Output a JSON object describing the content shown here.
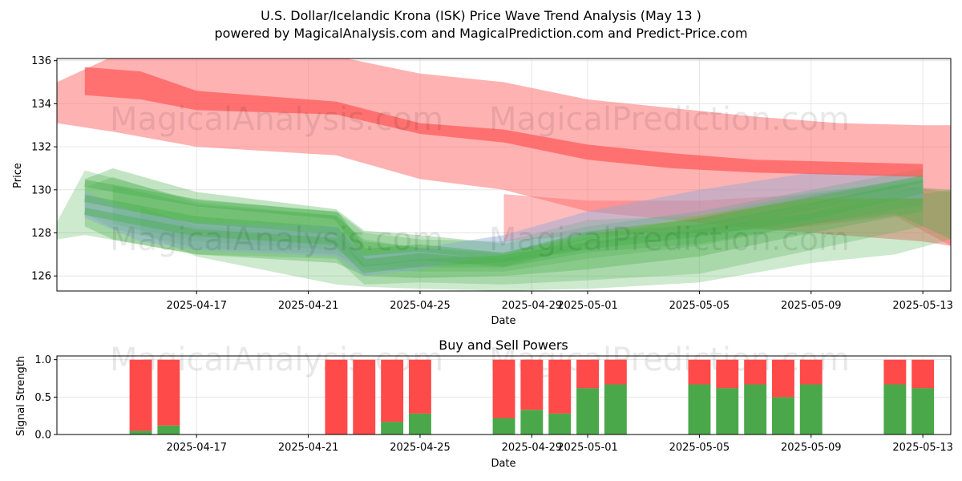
{
  "page": {
    "title_line1": "U.S. Dollar/Icelandic Krona (ISK) Price Wave Trend Analysis (May 13 )",
    "title_line2": "powered by MagicalAnalysis.com and MagicalPrediction.com and Predict-Price.com"
  },
  "watermarks": [
    "MagicalAnalysis.com",
    "MagicalPrediction.com"
  ],
  "colors": {
    "red_band": "#ff6b6b",
    "red_line": "#ff5555",
    "green_band": "#4caf50",
    "blue_band": "#8fa8d8",
    "sell": "#ff4a4a",
    "buy": "#4aa84a",
    "grid": "#e6e6e6"
  },
  "chart_data": [
    {
      "type": "area",
      "name": "price-wave-chart",
      "xlabel": "Date",
      "ylabel": "Price",
      "x_range": [
        "2025-04-12",
        "2025-05-14"
      ],
      "ylim": [
        125.3,
        136.1
      ],
      "x_ticks": [
        "2025-04-17",
        "2025-04-21",
        "2025-04-25",
        "2025-04-29",
        "2025-05-01",
        "2025-05-05",
        "2025-05-09",
        "2025-05-13"
      ],
      "y_ticks": [
        126,
        128,
        130,
        132,
        134,
        136
      ],
      "grid": true,
      "red_outer_band": {
        "x": [
          "2025-04-12",
          "2025-04-14",
          "2025-04-17",
          "2025-04-22",
          "2025-04-25",
          "2025-04-28",
          "2025-05-01",
          "2025-05-04",
          "2025-05-07",
          "2025-05-10",
          "2025-05-13",
          "2025-05-14"
        ],
        "upper": [
          135.0,
          136.2,
          136.5,
          136.2,
          135.4,
          135.0,
          134.2,
          133.8,
          133.4,
          133.1,
          133.0,
          133.0
        ],
        "lower": [
          133.1,
          132.7,
          132.0,
          131.6,
          130.5,
          130.0,
          129.0,
          128.6,
          128.2,
          127.9,
          127.6,
          127.4
        ]
      },
      "red_inner_band": {
        "x": [
          "2025-04-13",
          "2025-04-15",
          "2025-04-17",
          "2025-04-22",
          "2025-04-25",
          "2025-04-28",
          "2025-05-01",
          "2025-05-04",
          "2025-05-07",
          "2025-05-10",
          "2025-05-13"
        ],
        "upper": [
          135.7,
          135.5,
          134.6,
          134.1,
          133.1,
          132.8,
          132.1,
          131.7,
          131.4,
          131.3,
          131.2
        ],
        "lower": [
          134.4,
          134.2,
          133.7,
          133.5,
          132.6,
          132.2,
          131.4,
          131.0,
          130.8,
          130.7,
          130.6
        ]
      },
      "red_lower_band": {
        "x": [
          "2025-04-28",
          "2025-05-01",
          "2025-05-05",
          "2025-05-09",
          "2025-05-12",
          "2025-05-14"
        ],
        "upper": [
          129.8,
          129.5,
          129.5,
          129.8,
          130.2,
          129.9
        ],
        "lower": [
          127.6,
          127.9,
          128.0,
          128.3,
          128.8,
          127.4
        ]
      },
      "green_bands": [
        {
          "x": [
            "2025-04-13",
            "2025-04-14",
            "2025-04-17",
            "2025-04-22",
            "2025-04-23",
            "2025-04-25",
            "2025-04-28",
            "2025-05-01",
            "2025-05-05",
            "2025-05-09",
            "2025-05-13"
          ],
          "upper": [
            130.1,
            130.6,
            129.4,
            128.8,
            127.7,
            127.3,
            127.1,
            127.9,
            128.7,
            129.8,
            130.6
          ],
          "lower": [
            128.9,
            128.2,
            127.3,
            127.0,
            126.3,
            126.2,
            126.2,
            126.8,
            127.4,
            128.4,
            129.3
          ]
        },
        {
          "x": [
            "2025-04-13",
            "2025-04-14",
            "2025-04-17",
            "2025-04-22",
            "2025-04-23",
            "2025-04-25",
            "2025-04-28",
            "2025-05-01",
            "2025-05-05",
            "2025-05-09",
            "2025-05-13"
          ],
          "upper": [
            130.5,
            131.0,
            129.9,
            129.1,
            128.1,
            127.9,
            127.5,
            128.3,
            129.0,
            130.0,
            131.0
          ],
          "lower": [
            128.3,
            127.7,
            127.0,
            126.6,
            126.0,
            125.9,
            126.0,
            126.3,
            126.9,
            128.0,
            129.0
          ]
        },
        {
          "x": [
            "2025-04-12",
            "2025-04-13",
            "2025-04-17",
            "2025-04-22",
            "2025-04-23",
            "2025-04-25",
            "2025-04-28",
            "2025-05-01",
            "2025-05-05",
            "2025-05-09",
            "2025-05-13"
          ],
          "upper": [
            128.5,
            130.9,
            129.5,
            129.0,
            128.0,
            127.7,
            127.6,
            128.6,
            128.8,
            129.9,
            130.4
          ],
          "lower": [
            127.7,
            127.9,
            127.0,
            126.8,
            125.6,
            125.7,
            125.6,
            125.8,
            126.1,
            127.2,
            128.3
          ]
        },
        {
          "x": [
            "2025-04-14",
            "2025-04-17",
            "2025-04-22",
            "2025-04-23",
            "2025-04-25",
            "2025-04-28",
            "2025-05-01",
            "2025-05-05",
            "2025-05-09",
            "2025-05-12",
            "2025-05-14"
          ],
          "upper": [
            130.2,
            129.3,
            128.8,
            127.6,
            127.3,
            127.0,
            128.0,
            128.4,
            129.4,
            130.2,
            130.0
          ],
          "lower": [
            128.4,
            127.6,
            127.2,
            126.5,
            126.4,
            126.4,
            127.1,
            127.5,
            128.4,
            128.9,
            127.7
          ]
        },
        {
          "x": [
            "2025-04-15",
            "2025-04-17",
            "2025-04-22",
            "2025-04-23",
            "2025-04-25",
            "2025-04-28",
            "2025-05-01",
            "2025-05-05",
            "2025-05-09",
            "2025-05-12",
            "2025-05-14"
          ],
          "upper": [
            129.2,
            128.3,
            128.0,
            126.8,
            127.0,
            126.8,
            127.4,
            128.1,
            128.9,
            129.6,
            130.0
          ],
          "lower": [
            128.0,
            126.9,
            125.6,
            125.5,
            125.4,
            125.3,
            125.4,
            125.7,
            126.6,
            127.0,
            127.7
          ]
        }
      ],
      "blue_band": {
        "x": [
          "2025-04-13",
          "2025-04-15",
          "2025-04-17",
          "2025-04-22",
          "2025-04-23",
          "2025-04-25",
          "2025-04-28",
          "2025-05-01",
          "2025-05-05",
          "2025-05-09",
          "2025-05-13"
        ],
        "upper": [
          129.9,
          128.9,
          128.5,
          128.3,
          127.0,
          127.3,
          127.9,
          129.0,
          130.0,
          130.8,
          130.7
        ],
        "lower": [
          128.7,
          127.6,
          127.2,
          126.9,
          126.0,
          126.3,
          127.0,
          127.9,
          128.8,
          129.6,
          129.6
        ]
      },
      "signal_lines": [
        {
          "x": [
            "2025-04-13",
            "2025-04-17",
            "2025-04-22",
            "2025-04-23",
            "2025-04-25",
            "2025-04-28",
            "2025-05-01",
            "2025-05-05",
            "2025-05-09",
            "2025-05-13"
          ],
          "y": [
            130.3,
            129.4,
            128.8,
            127.1,
            127.3,
            126.9,
            127.9,
            128.5,
            129.5,
            130.5
          ]
        },
        {
          "x": [
            "2025-04-13",
            "2025-04-17",
            "2025-04-22",
            "2025-04-23",
            "2025-04-25",
            "2025-04-28",
            "2025-05-01",
            "2025-05-05",
            "2025-05-09",
            "2025-05-13"
          ],
          "y": [
            129.6,
            128.6,
            128.1,
            126.6,
            126.9,
            126.6,
            127.6,
            128.2,
            129.2,
            130.3
          ]
        },
        {
          "x": [
            "2025-04-13",
            "2025-04-17",
            "2025-04-22",
            "2025-04-23",
            "2025-04-25",
            "2025-04-28",
            "2025-05-01",
            "2025-05-05",
            "2025-05-09",
            "2025-05-13"
          ],
          "y": [
            129.0,
            128.0,
            127.6,
            126.3,
            126.6,
            126.8,
            127.4,
            128.0,
            128.8,
            130.0
          ]
        }
      ]
    },
    {
      "type": "bar",
      "name": "buy-sell-powers-chart",
      "title": "Buy and Sell Powers",
      "xlabel": "Date",
      "ylabel": "Signal Strength",
      "x_range": [
        "2025-04-12",
        "2025-05-14"
      ],
      "ylim": [
        0,
        1.05
      ],
      "y_ticks": [
        "0.0",
        "0.5",
        "1.0"
      ],
      "x_ticks": [
        "2025-04-17",
        "2025-04-21",
        "2025-04-25",
        "2025-04-29",
        "2025-05-01",
        "2025-05-05",
        "2025-05-09",
        "2025-05-13"
      ],
      "grid": true,
      "dates": [
        "2025-04-15",
        "2025-04-16",
        "2025-04-22",
        "2025-04-23",
        "2025-04-24",
        "2025-04-25",
        "2025-04-28",
        "2025-04-29",
        "2025-04-30",
        "2025-05-01",
        "2025-05-02",
        "2025-05-05",
        "2025-05-06",
        "2025-05-07",
        "2025-05-08",
        "2025-05-09",
        "2025-05-12",
        "2025-05-13"
      ],
      "buy": [
        0.05,
        0.12,
        0.0,
        0.0,
        0.17,
        0.28,
        0.22,
        0.33,
        0.28,
        0.62,
        0.67,
        0.67,
        0.62,
        0.67,
        0.5,
        0.67,
        0.67,
        0.62
      ],
      "sell": [
        0.95,
        0.88,
        1.0,
        1.0,
        0.83,
        0.72,
        0.78,
        0.67,
        0.72,
        0.38,
        0.33,
        0.33,
        0.38,
        0.33,
        0.5,
        0.33,
        0.33,
        0.38
      ]
    }
  ]
}
